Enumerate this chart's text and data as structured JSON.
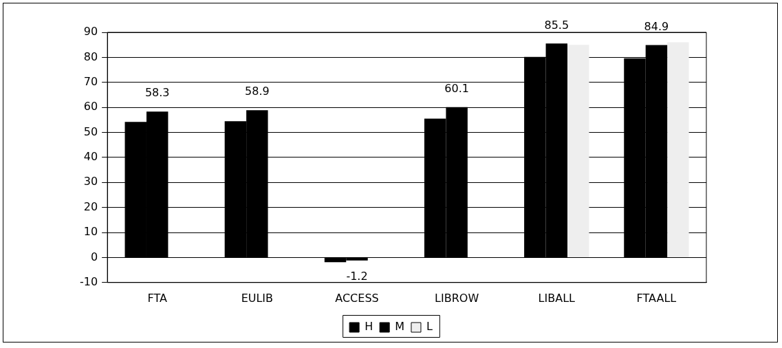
{
  "chart_data": {
    "type": "bar",
    "categories": [
      "FTA",
      "EULIB",
      "ACCESS",
      "LIBROW",
      "LIBALL",
      "FTAALL"
    ],
    "series": [
      {
        "name": "H",
        "color": "#000000",
        "values": [
          54.2,
          54.5,
          -1.9,
          55.5,
          80.2,
          79.6
        ]
      },
      {
        "name": "M",
        "color": "#000000",
        "values": [
          58.3,
          58.9,
          -1.2,
          60.1,
          85.5,
          84.9
        ],
        "value_labels": [
          "58.3",
          "58.9",
          "-1.2",
          "60.1",
          "85.5",
          "84.9"
        ]
      },
      {
        "name": "L",
        "color": "#eeeeee",
        "values": [
          null,
          null,
          null,
          null,
          85,
          86
        ]
      }
    ],
    "ylim": [
      -10,
      90
    ],
    "yticks": [
      -10,
      0,
      10,
      20,
      30,
      40,
      50,
      60,
      70,
      80,
      90
    ],
    "grid": "y",
    "legend": "bottom"
  }
}
